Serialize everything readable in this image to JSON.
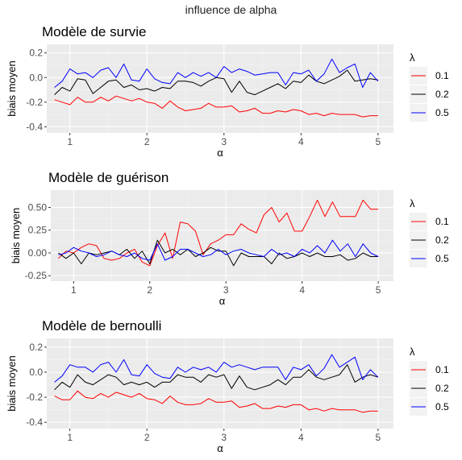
{
  "suptitle": "influence de alpha",
  "legend_title": "λ",
  "colors": {
    "0.1": "#ff0000",
    "0.2": "#000000",
    "0.5": "#0000ff"
  },
  "chart_data": [
    {
      "type": "line",
      "title": "Modèle de survie",
      "xlabel": "α",
      "ylabel": "biais moyen",
      "xlim": [
        0.7,
        5.2
      ],
      "ylim": [
        -0.45,
        0.27
      ],
      "xticks": [
        1,
        2,
        3,
        4,
        5
      ],
      "yticks": [
        -0.4,
        -0.2,
        0.0,
        0.2
      ],
      "ytick_labels": [
        "-0.4",
        "-0.2",
        "0.0",
        "0.2"
      ],
      "legend_position": "right",
      "x": [
        0.8,
        0.9,
        1.0,
        1.1,
        1.2,
        1.3,
        1.4,
        1.5,
        1.6,
        1.7,
        1.8,
        1.9,
        2.0,
        2.1,
        2.2,
        2.3,
        2.4,
        2.5,
        2.6,
        2.7,
        2.8,
        2.9,
        3.0,
        3.1,
        3.2,
        3.3,
        3.4,
        3.5,
        3.6,
        3.7,
        3.8,
        3.9,
        4.0,
        4.1,
        4.2,
        4.3,
        4.4,
        4.5,
        4.6,
        4.7,
        4.8,
        4.9,
        5.0
      ],
      "series": [
        {
          "name": "0.1",
          "values": [
            -0.18,
            -0.2,
            -0.22,
            -0.16,
            -0.2,
            -0.2,
            -0.16,
            -0.19,
            -0.15,
            -0.17,
            -0.19,
            -0.17,
            -0.2,
            -0.21,
            -0.25,
            -0.19,
            -0.24,
            -0.27,
            -0.26,
            -0.25,
            -0.21,
            -0.24,
            -0.24,
            -0.23,
            -0.28,
            -0.27,
            -0.25,
            -0.29,
            -0.29,
            -0.27,
            -0.28,
            -0.26,
            -0.27,
            -0.3,
            -0.29,
            -0.31,
            -0.29,
            -0.3,
            -0.3,
            -0.3,
            -0.32,
            -0.31,
            -0.31
          ]
        },
        {
          "name": "0.2",
          "values": [
            -0.14,
            -0.08,
            -0.11,
            -0.01,
            -0.02,
            -0.13,
            -0.08,
            -0.03,
            -0.02,
            -0.08,
            -0.06,
            -0.1,
            -0.09,
            -0.11,
            -0.08,
            -0.09,
            -0.03,
            -0.03,
            -0.04,
            -0.07,
            -0.03,
            0.0,
            -0.01,
            -0.12,
            -0.03,
            -0.12,
            -0.14,
            -0.11,
            -0.08,
            -0.05,
            -0.09,
            -0.03,
            -0.04,
            0.02,
            -0.03,
            -0.05,
            -0.02,
            0.01,
            0.06,
            -0.03,
            -0.02,
            -0.01,
            -0.02
          ]
        },
        {
          "name": "0.5",
          "values": [
            -0.08,
            -0.03,
            0.07,
            0.03,
            0.04,
            0.0,
            0.06,
            0.08,
            0.0,
            0.11,
            -0.02,
            -0.03,
            0.07,
            -0.01,
            -0.04,
            -0.05,
            0.04,
            0.0,
            0.04,
            0.01,
            0.04,
            0.0,
            0.09,
            0.04,
            0.07,
            0.05,
            0.02,
            0.03,
            0.04,
            0.04,
            -0.06,
            0.04,
            0.03,
            0.06,
            -0.03,
            0.03,
            0.15,
            0.04,
            0.08,
            0.11,
            -0.08,
            0.04,
            -0.03
          ]
        }
      ]
    },
    {
      "type": "line",
      "title": "Modèle de guérison",
      "xlabel": "α",
      "ylabel": "biais moyen",
      "xlim": [
        0.7,
        5.2
      ],
      "ylim": [
        -0.31,
        0.69
      ],
      "xticks": [
        1,
        2,
        3,
        4,
        5
      ],
      "yticks": [
        -0.25,
        0.0,
        0.25,
        0.5
      ],
      "ytick_labels": [
        "-0.25",
        "0.00",
        "0.25",
        "0.50"
      ],
      "legend_position": "right",
      "x": [
        0.8,
        0.9,
        1.0,
        1.1,
        1.2,
        1.3,
        1.4,
        1.5,
        1.6,
        1.7,
        1.8,
        1.9,
        2.0,
        2.1,
        2.2,
        2.3,
        2.4,
        2.5,
        2.6,
        2.7,
        2.8,
        2.9,
        3.0,
        3.1,
        3.2,
        3.3,
        3.4,
        3.5,
        3.6,
        3.7,
        3.8,
        3.9,
        4.0,
        4.1,
        4.2,
        4.3,
        4.4,
        4.5,
        4.6,
        4.7,
        4.8,
        4.9,
        5.0
      ],
      "series": [
        {
          "name": "0.1",
          "values": [
            -0.06,
            0.02,
            0.0,
            0.06,
            0.1,
            0.08,
            -0.06,
            -0.08,
            -0.06,
            0.0,
            0.04,
            -0.1,
            -0.14,
            0.08,
            0.22,
            -0.06,
            0.34,
            0.32,
            0.24,
            -0.02,
            0.1,
            0.14,
            0.2,
            0.2,
            0.32,
            0.26,
            0.22,
            0.42,
            0.5,
            0.34,
            0.44,
            0.24,
            0.24,
            0.4,
            0.58,
            0.4,
            0.56,
            0.4,
            0.4,
            0.4,
            0.58,
            0.48,
            0.48
          ]
        },
        {
          "name": "0.2",
          "values": [
            0.0,
            -0.06,
            0.0,
            -0.12,
            0.0,
            -0.02,
            0.0,
            0.02,
            -0.02,
            0.04,
            -0.06,
            0.02,
            -0.12,
            0.14,
            0.0,
            0.04,
            -0.02,
            0.04,
            -0.04,
            0.0,
            0.06,
            0.02,
            0.02,
            -0.14,
            0.0,
            -0.04,
            -0.04,
            -0.04,
            -0.12,
            0.0,
            -0.06,
            -0.04,
            0.0,
            -0.04,
            0.0,
            -0.04,
            -0.04,
            -0.02,
            -0.08,
            -0.06,
            0.0,
            -0.04,
            -0.04
          ]
        },
        {
          "name": "0.5",
          "values": [
            -0.02,
            0.0,
            0.06,
            0.02,
            0.0,
            -0.04,
            -0.02,
            0.02,
            -0.02,
            -0.04,
            0.0,
            -0.06,
            -0.08,
            0.1,
            -0.08,
            -0.04,
            0.04,
            0.04,
            0.0,
            -0.04,
            -0.02,
            0.04,
            -0.02,
            0.02,
            0.04,
            0.0,
            -0.02,
            -0.04,
            0.04,
            -0.02,
            0.0,
            -0.04,
            0.04,
            0.0,
            0.08,
            0.0,
            0.14,
            0.02,
            0.1,
            -0.04,
            0.1,
            0.0,
            -0.04
          ]
        }
      ]
    },
    {
      "type": "line",
      "title": "Modèle de bernoulli",
      "xlabel": "α",
      "ylabel": "biais moyen",
      "xlim": [
        0.7,
        5.2
      ],
      "ylim": [
        -0.45,
        0.27
      ],
      "xticks": [
        1,
        2,
        3,
        4,
        5
      ],
      "yticks": [
        -0.4,
        -0.2,
        0.0,
        0.2
      ],
      "ytick_labels": [
        "-0.4",
        "-0.2",
        "0.0",
        "0.2"
      ],
      "legend_position": "right",
      "x": [
        0.8,
        0.9,
        1.0,
        1.1,
        1.2,
        1.3,
        1.4,
        1.5,
        1.6,
        1.7,
        1.8,
        1.9,
        2.0,
        2.1,
        2.2,
        2.3,
        2.4,
        2.5,
        2.6,
        2.7,
        2.8,
        2.9,
        3.0,
        3.1,
        3.2,
        3.3,
        3.4,
        3.5,
        3.6,
        3.7,
        3.8,
        3.9,
        4.0,
        4.1,
        4.2,
        4.3,
        4.4,
        4.5,
        4.6,
        4.7,
        4.8,
        4.9,
        5.0
      ],
      "series": [
        {
          "name": "0.1",
          "values": [
            -0.19,
            -0.22,
            -0.22,
            -0.15,
            -0.2,
            -0.21,
            -0.17,
            -0.2,
            -0.16,
            -0.18,
            -0.2,
            -0.17,
            -0.21,
            -0.22,
            -0.25,
            -0.19,
            -0.24,
            -0.26,
            -0.26,
            -0.25,
            -0.21,
            -0.24,
            -0.24,
            -0.23,
            -0.28,
            -0.27,
            -0.25,
            -0.29,
            -0.29,
            -0.27,
            -0.28,
            -0.26,
            -0.26,
            -0.3,
            -0.29,
            -0.31,
            -0.29,
            -0.3,
            -0.3,
            -0.3,
            -0.32,
            -0.31,
            -0.31
          ]
        },
        {
          "name": "0.2",
          "values": [
            -0.14,
            -0.08,
            -0.12,
            -0.02,
            -0.08,
            -0.1,
            -0.06,
            -0.02,
            -0.04,
            -0.1,
            -0.08,
            -0.1,
            -0.08,
            -0.12,
            -0.08,
            -0.08,
            -0.02,
            -0.04,
            -0.04,
            -0.08,
            -0.02,
            -0.04,
            -0.02,
            -0.13,
            -0.03,
            -0.12,
            -0.14,
            -0.12,
            -0.1,
            -0.06,
            -0.1,
            -0.04,
            -0.04,
            0.02,
            -0.04,
            -0.06,
            -0.04,
            -0.02,
            0.06,
            -0.08,
            -0.04,
            -0.02,
            -0.04
          ]
        },
        {
          "name": "0.5",
          "values": [
            -0.08,
            -0.03,
            0.06,
            0.04,
            0.04,
            0.0,
            0.06,
            0.08,
            0.0,
            0.1,
            -0.02,
            -0.03,
            0.06,
            -0.01,
            -0.04,
            -0.05,
            0.04,
            0.0,
            0.04,
            0.02,
            0.04,
            0.0,
            0.08,
            0.04,
            0.06,
            0.04,
            0.02,
            0.04,
            0.04,
            0.04,
            -0.06,
            0.04,
            0.02,
            0.06,
            -0.03,
            0.03,
            0.14,
            0.04,
            0.08,
            0.12,
            -0.06,
            0.02,
            -0.04
          ]
        }
      ]
    }
  ]
}
